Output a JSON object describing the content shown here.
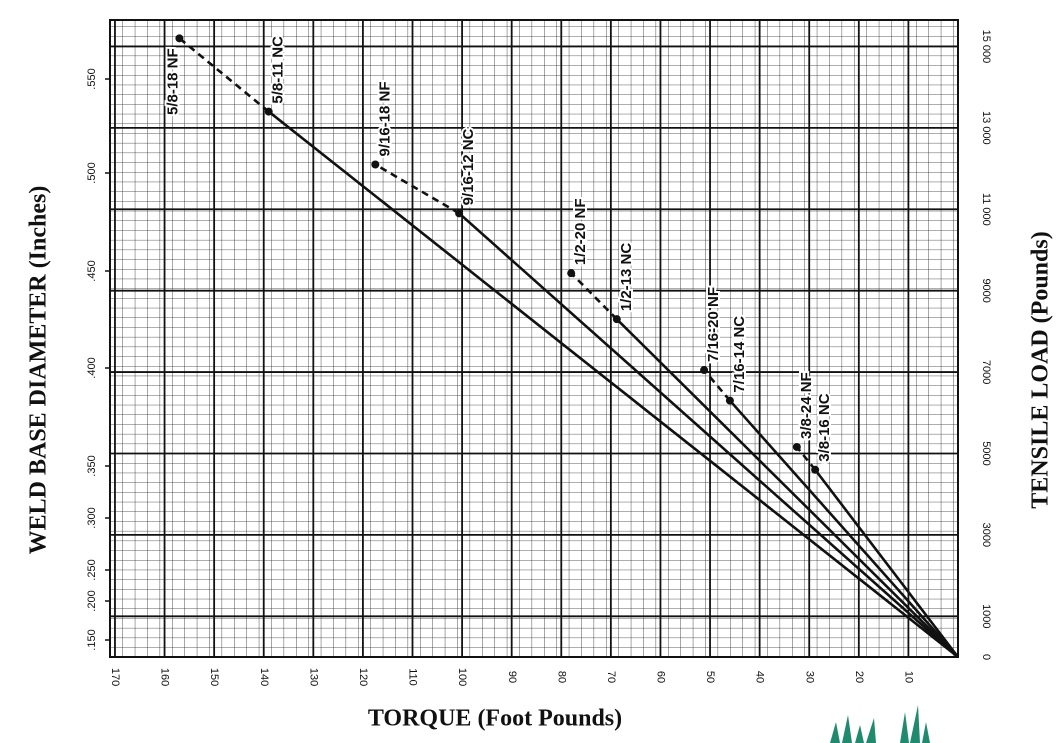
{
  "chart_data": {
    "type": "line",
    "xlabel": "TORQUE (Foot Pounds)",
    "ylabel": "WELD BASE DIAMETER (Inches)",
    "y2label": "TENSILE LOAD (Pounds)",
    "xlim": [
      171,
      0
    ],
    "xticks": [
      170,
      160,
      150,
      140,
      130,
      120,
      110,
      100,
      90,
      80,
      70,
      60,
      50,
      40,
      30,
      20,
      10
    ],
    "yticks": [
      {
        "value": 0.15,
        "label": ".150"
      },
      {
        "value": 0.2,
        "label": ".200"
      },
      {
        "value": 0.25,
        "label": ".250"
      },
      {
        "value": 0.3,
        "label": ".300"
      },
      {
        "value": 0.35,
        "label": ".350"
      },
      {
        "value": 0.4,
        "label": ".400"
      },
      {
        "value": 0.45,
        "label": ".450"
      },
      {
        "value": 0.5,
        "label": ".500"
      },
      {
        "value": 0.55,
        "label": ".550"
      }
    ],
    "y2lim": [
      0,
      15650
    ],
    "y2ticks": [
      0,
      1000,
      3000,
      5000,
      7000,
      9000,
      {
        "value": 11000,
        "label": "11 000"
      },
      {
        "value": 13000,
        "label": "13 000"
      },
      {
        "value": 15000,
        "label": "15 000"
      }
    ],
    "grid": true,
    "color": "#111111",
    "series": [
      {
        "axis": "y2",
        "x": [
          0,
          139,
          157
        ],
        "values": [
          0,
          13400,
          15200
        ],
        "labels": [
          null,
          "5/8-11 NC",
          "5/8-18 NF"
        ]
      },
      {
        "axis": "y2",
        "x": [
          0,
          100.6,
          117.5
        ],
        "values": [
          0,
          10900,
          12100
        ],
        "labels": [
          null,
          "9/16-12 NC",
          "9/16-18 NF"
        ]
      },
      {
        "axis": "y2",
        "x": [
          0,
          68.8,
          78
        ],
        "values": [
          0,
          8300,
          9430
        ],
        "labels": [
          null,
          "1/2-13 NC",
          "1/2-20 NF"
        ]
      },
      {
        "axis": "y2",
        "x": [
          0,
          46,
          51.2
        ],
        "values": [
          0,
          6300,
          7050
        ],
        "labels": [
          null,
          "7/16-14 NC",
          "7/16-20 NF"
        ]
      },
      {
        "axis": "y2",
        "x": [
          0,
          28.8,
          32.5
        ],
        "values": [
          0,
          4600,
          5160
        ],
        "labels": [
          null,
          "3/8-16 NC",
          "3/8-24 NF"
        ]
      }
    ]
  }
}
